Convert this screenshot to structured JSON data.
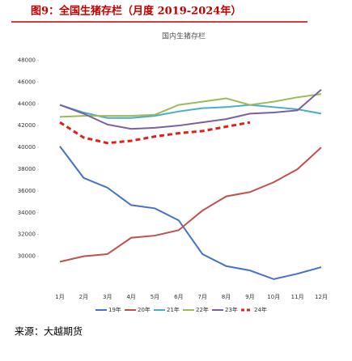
{
  "chart_data": {
    "type": "line",
    "title": "图9：全国生猪存栏（月度 2019-2024年）",
    "subtitle": "国内生猪存栏",
    "source": "来源：大越期货",
    "categories": [
      "1月",
      "2月",
      "3月",
      "4月",
      "5月",
      "6月",
      "7月",
      "8月",
      "9月",
      "10月",
      "11月",
      "12月"
    ],
    "ylim": [
      27000,
      49000
    ],
    "yticks": [
      30000,
      32000,
      34000,
      36000,
      38000,
      40000,
      42000,
      44000,
      46000,
      48000
    ],
    "series": [
      {
        "name": "19年",
        "color": "#4472c4",
        "values": [
          40100,
          37200,
          36300,
          34700,
          34400,
          33300,
          30200,
          29100,
          28700,
          27900,
          28400,
          29000
        ]
      },
      {
        "name": "20年",
        "color": "#c0504d",
        "values": [
          29500,
          30000,
          30200,
          31700,
          31900,
          32400,
          34200,
          35500,
          35900,
          36800,
          38000,
          40000
        ]
      },
      {
        "name": "21年",
        "color": "#4bacc6",
        "values": [
          43900,
          43200,
          42700,
          42700,
          42900,
          43300,
          43600,
          43700,
          43900,
          43700,
          43500,
          43100
        ]
      },
      {
        "name": "22年",
        "color": "#9bbb59",
        "values": [
          42800,
          42900,
          42900,
          42900,
          43000,
          43900,
          44200,
          44500,
          43900,
          44200,
          44600,
          44900
        ]
      },
      {
        "name": "23年",
        "color": "#7a5fa3",
        "values": [
          43900,
          43100,
          42100,
          41700,
          41800,
          42000,
          42300,
          42600,
          43100,
          43200,
          43400,
          45300
        ]
      },
      {
        "name": "24年",
        "color": "#e0201a",
        "dashed": true,
        "values": [
          42300,
          40900,
          40400,
          40600,
          41000,
          41300,
          41500,
          41900,
          42300,
          null,
          null,
          null
        ]
      }
    ]
  }
}
